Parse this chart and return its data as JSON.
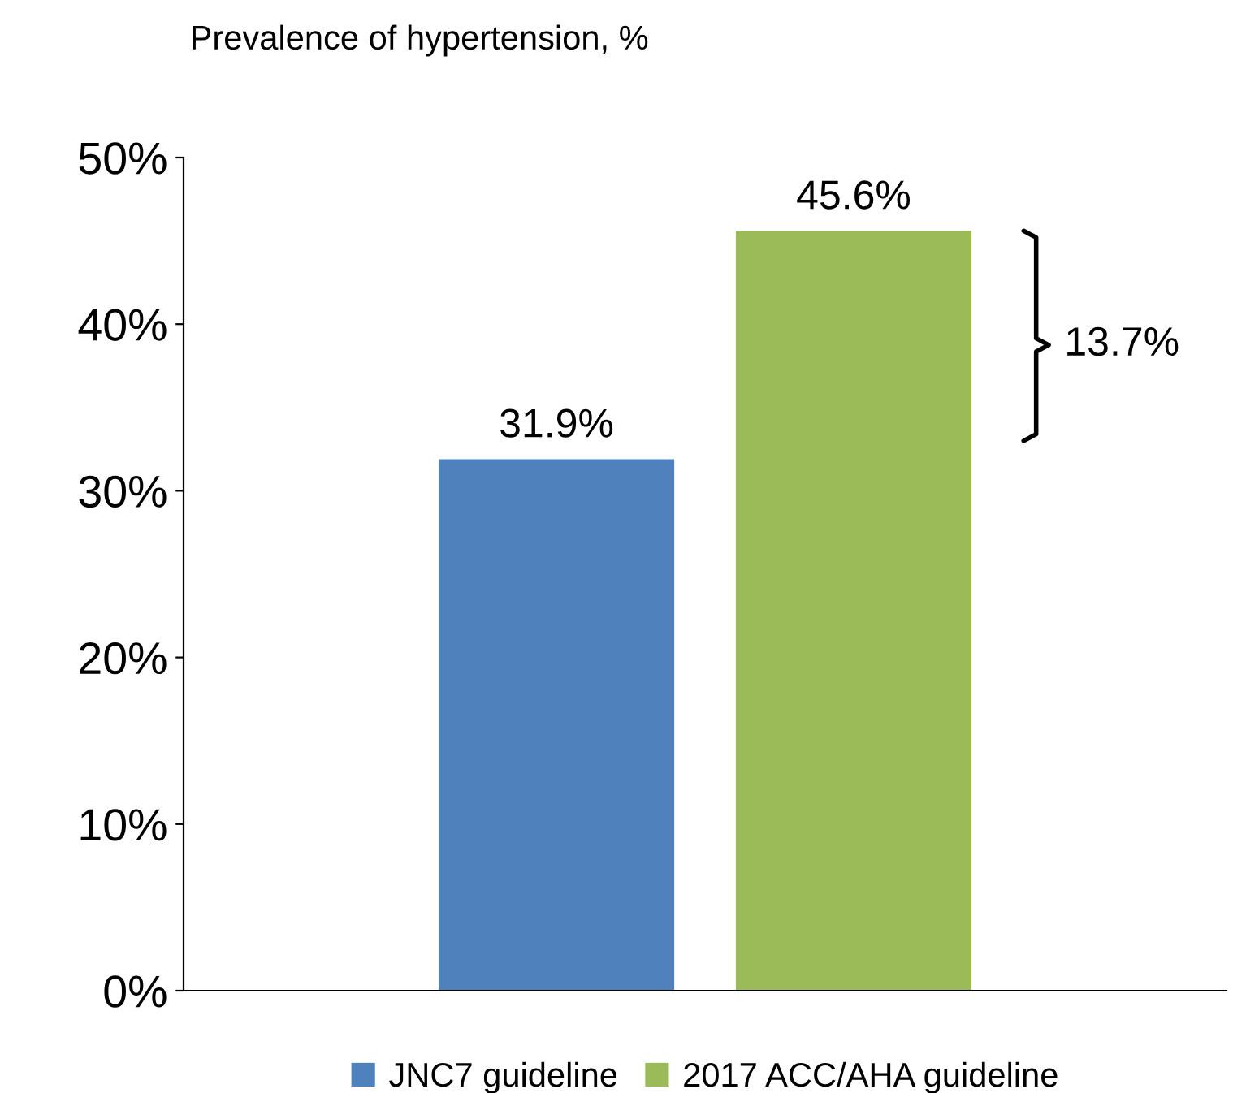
{
  "chart_data": {
    "type": "bar",
    "title": "Prevalence of hypertension, %",
    "categories": [
      null
    ],
    "series": [
      {
        "name": "JNC7 guideline",
        "color": "#4f81bd",
        "values": [
          31.9
        ],
        "value_labels": [
          "31.9%"
        ]
      },
      {
        "name": "2017 ACC/AHA guideline",
        "color": "#9bbb59",
        "values": [
          45.6
        ],
        "value_labels": [
          "45.6%"
        ]
      }
    ],
    "annotations": [
      "13.7%"
    ],
    "ylim": [
      0,
      50
    ],
    "yticks": [
      {
        "value": 0,
        "label": "0%"
      },
      {
        "value": 10,
        "label": "10%"
      },
      {
        "value": 20,
        "label": "20%"
      },
      {
        "value": 30,
        "label": "30%"
      },
      {
        "value": 40,
        "label": "40%"
      },
      {
        "value": 50,
        "label": "50%"
      }
    ],
    "grid": false,
    "legend": "bottom"
  }
}
